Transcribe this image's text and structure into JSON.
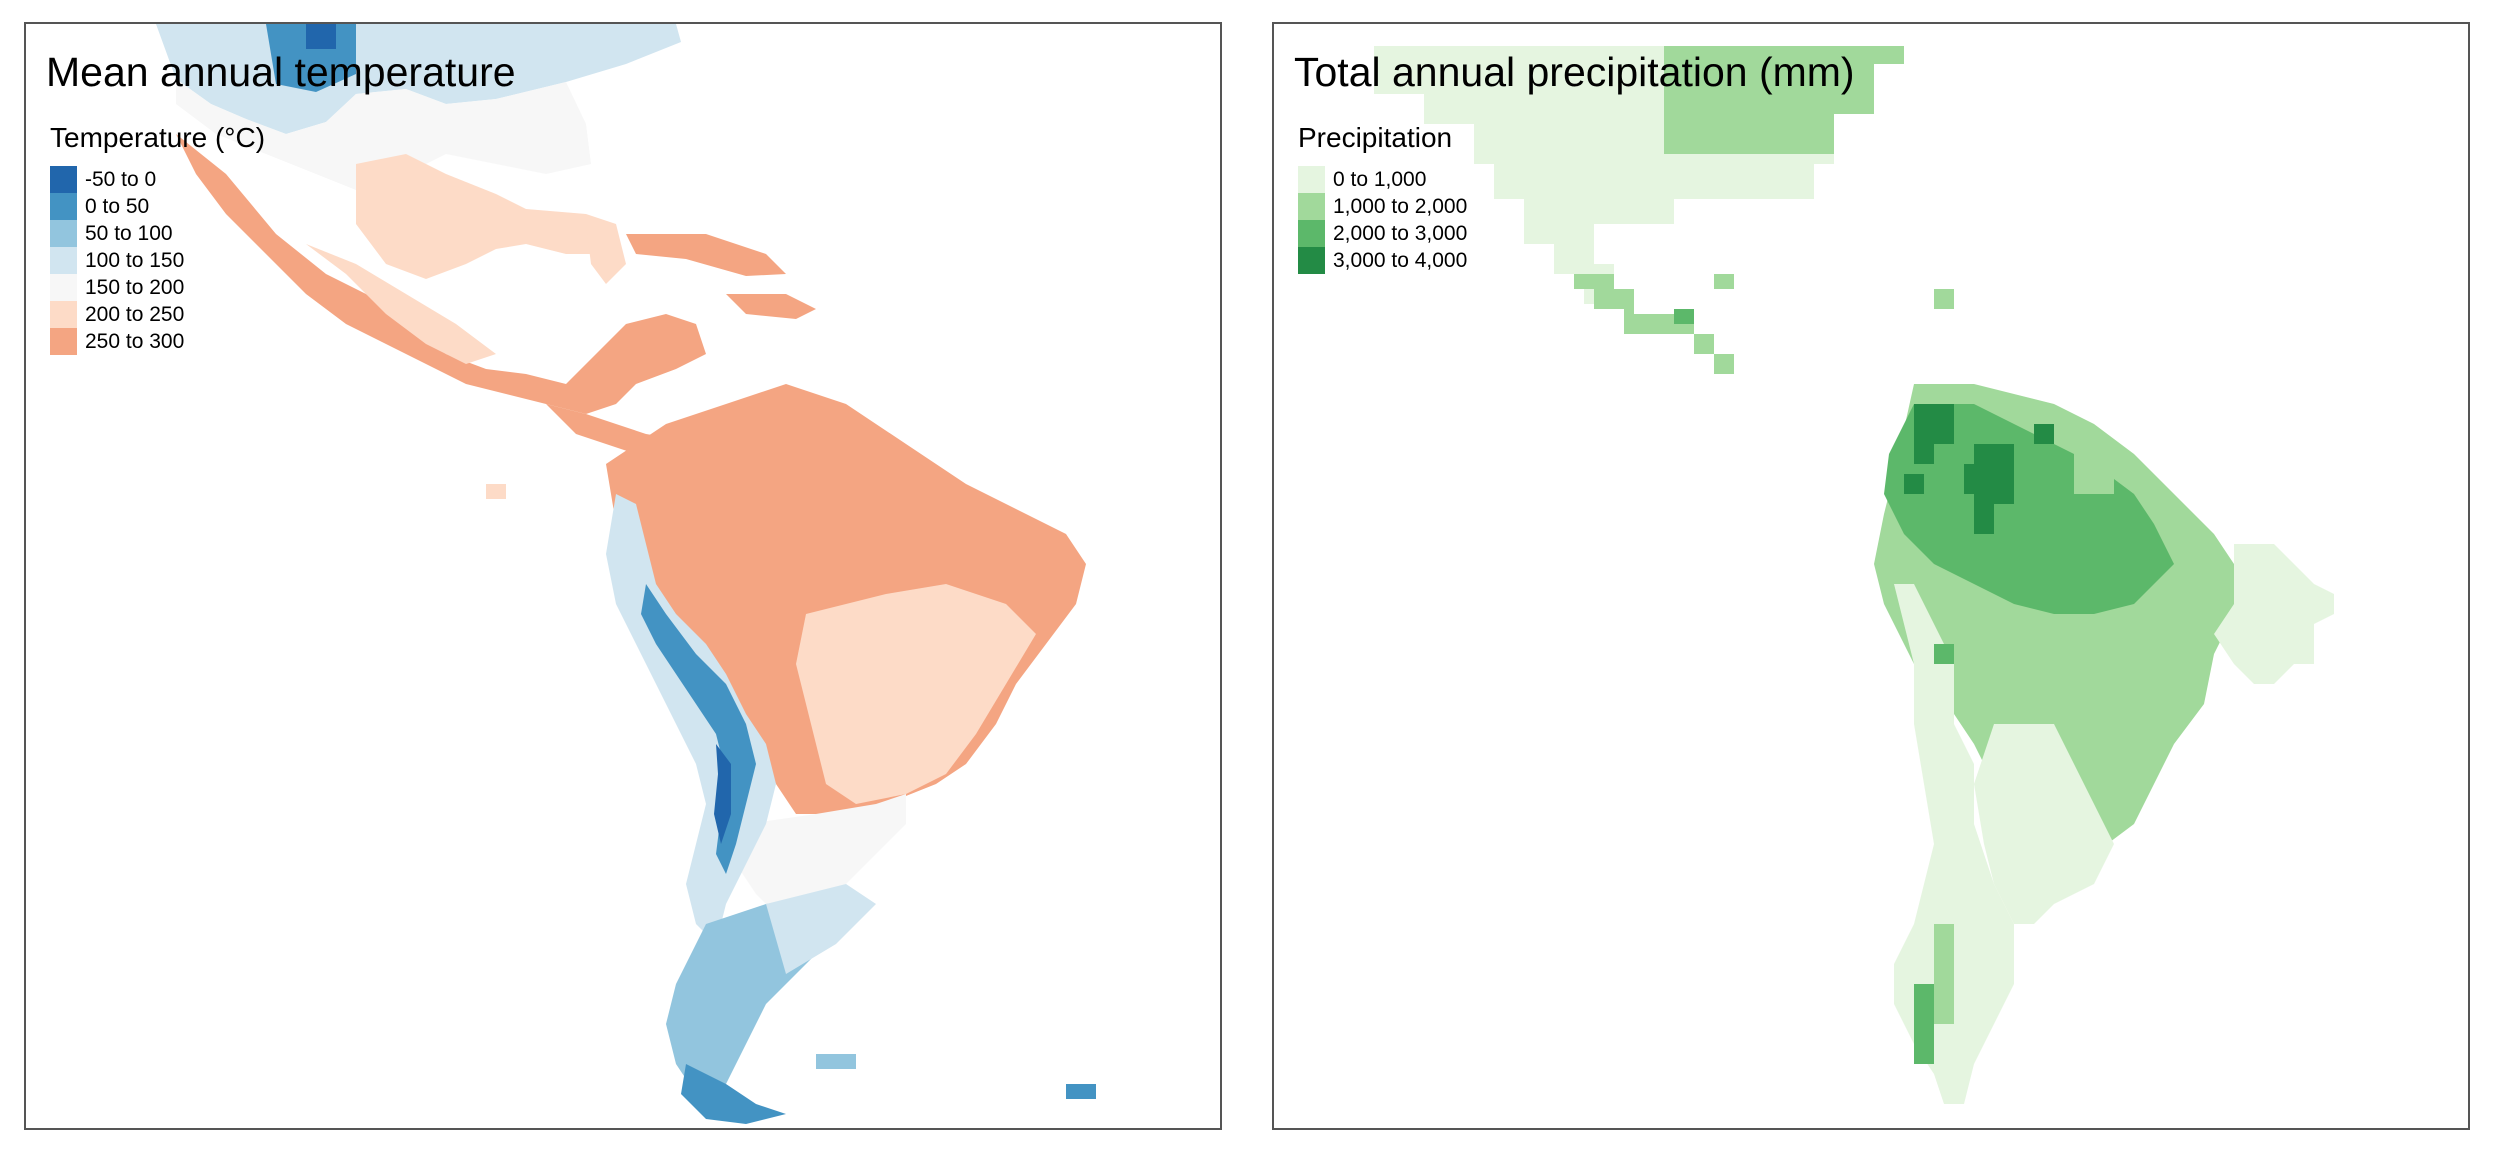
{
  "panels": [
    {
      "title": "Mean annual temperature",
      "legend": {
        "title": "Temperature (°C)",
        "items": [
          {
            "label": "-50 to 0",
            "color": "#2166ac"
          },
          {
            "label": "0 to 50",
            "color": "#4393c3"
          },
          {
            "label": "50 to 100",
            "color": "#92c5de"
          },
          {
            "label": "100 to 150",
            "color": "#d1e5f0"
          },
          {
            "label": "150 to 200",
            "color": "#f7f7f7"
          },
          {
            "label": "200 to 250",
            "color": "#fddbc7"
          },
          {
            "label": "250 to 300",
            "color": "#f4a582"
          }
        ]
      }
    },
    {
      "title": "Total annual precipitation (mm)",
      "legend": {
        "title": "Precipitation",
        "items": [
          {
            "label": "0 to 1,000",
            "color": "#e5f5e0"
          },
          {
            "label": "1,000 to 2,000",
            "color": "#a1d99b"
          },
          {
            "label": "2,000 to 3,000",
            "color": "#5cb86a"
          },
          {
            "label": "3,000 to 4,000",
            "color": "#238b45"
          }
        ]
      }
    }
  ]
}
